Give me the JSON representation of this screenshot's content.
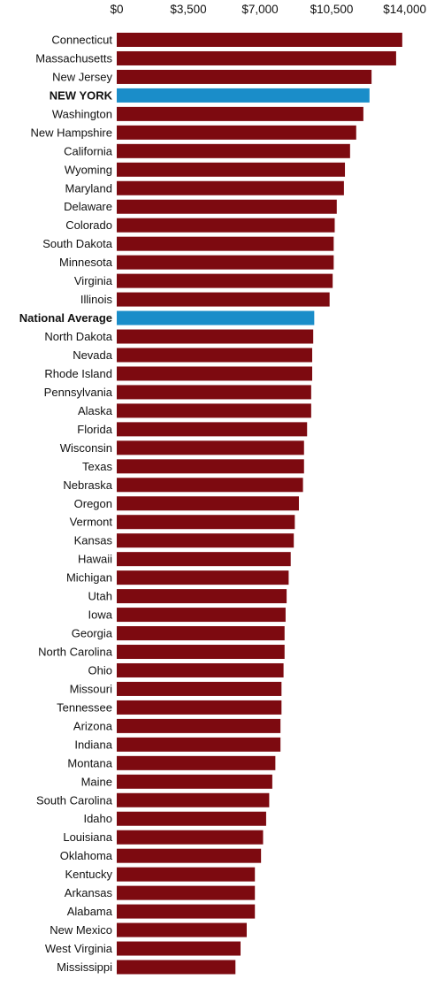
{
  "chart_data": {
    "type": "bar",
    "orientation": "horizontal",
    "title": "",
    "xlabel": "",
    "ylabel": "",
    "xlim": [
      0,
      14000
    ],
    "x_ticks": [
      "$0",
      "$3,500",
      "$7,000",
      "$10,500",
      "$14,000"
    ],
    "x_tick_values": [
      0,
      3500,
      7000,
      10500,
      14000
    ],
    "grid": false,
    "legend": "none",
    "colors": {
      "default": "#7d0a10",
      "highlight": "#1a8dc9"
    },
    "categories": [
      "Connecticut",
      "Massachusetts",
      "New Jersey",
      "NEW YORK",
      "Washington",
      "New Hampshire",
      "California",
      "Wyoming",
      "Maryland",
      "Delaware",
      "Colorado",
      "South Dakota",
      "Minnesota",
      "Virginia",
      "Illinois",
      "National Average",
      "North Dakota",
      "Nevada",
      "Rhode Island",
      "Pennsylvania",
      "Alaska",
      "Florida",
      "Wisconsin",
      "Texas",
      "Nebraska",
      "Oregon",
      "Vermont",
      "Kansas",
      "Hawaii",
      "Michigan",
      "Utah",
      "Iowa",
      "Georgia",
      "North Carolina",
      "Ohio",
      "Missouri",
      "Tennessee",
      "Arizona",
      "Indiana",
      "Montana",
      "Maine",
      "South Carolina",
      "Idaho",
      "Louisiana",
      "Oklahoma",
      "Kentucky",
      "Arkansas",
      "Alabama",
      "New Mexico",
      "West Virginia",
      "Mississippi"
    ],
    "values": [
      13950,
      13650,
      12450,
      12350,
      12050,
      11700,
      11400,
      11150,
      11100,
      10750,
      10650,
      10600,
      10600,
      10550,
      10400,
      9650,
      9600,
      9550,
      9550,
      9500,
      9500,
      9300,
      9150,
      9150,
      9100,
      8900,
      8700,
      8650,
      8500,
      8400,
      8300,
      8250,
      8200,
      8200,
      8150,
      8050,
      8050,
      8000,
      8000,
      7750,
      7600,
      7450,
      7300,
      7150,
      7050,
      6750,
      6750,
      6750,
      6350,
      6050,
      5800
    ],
    "highlighted": [
      "NEW YORK",
      "National Average"
    ]
  }
}
